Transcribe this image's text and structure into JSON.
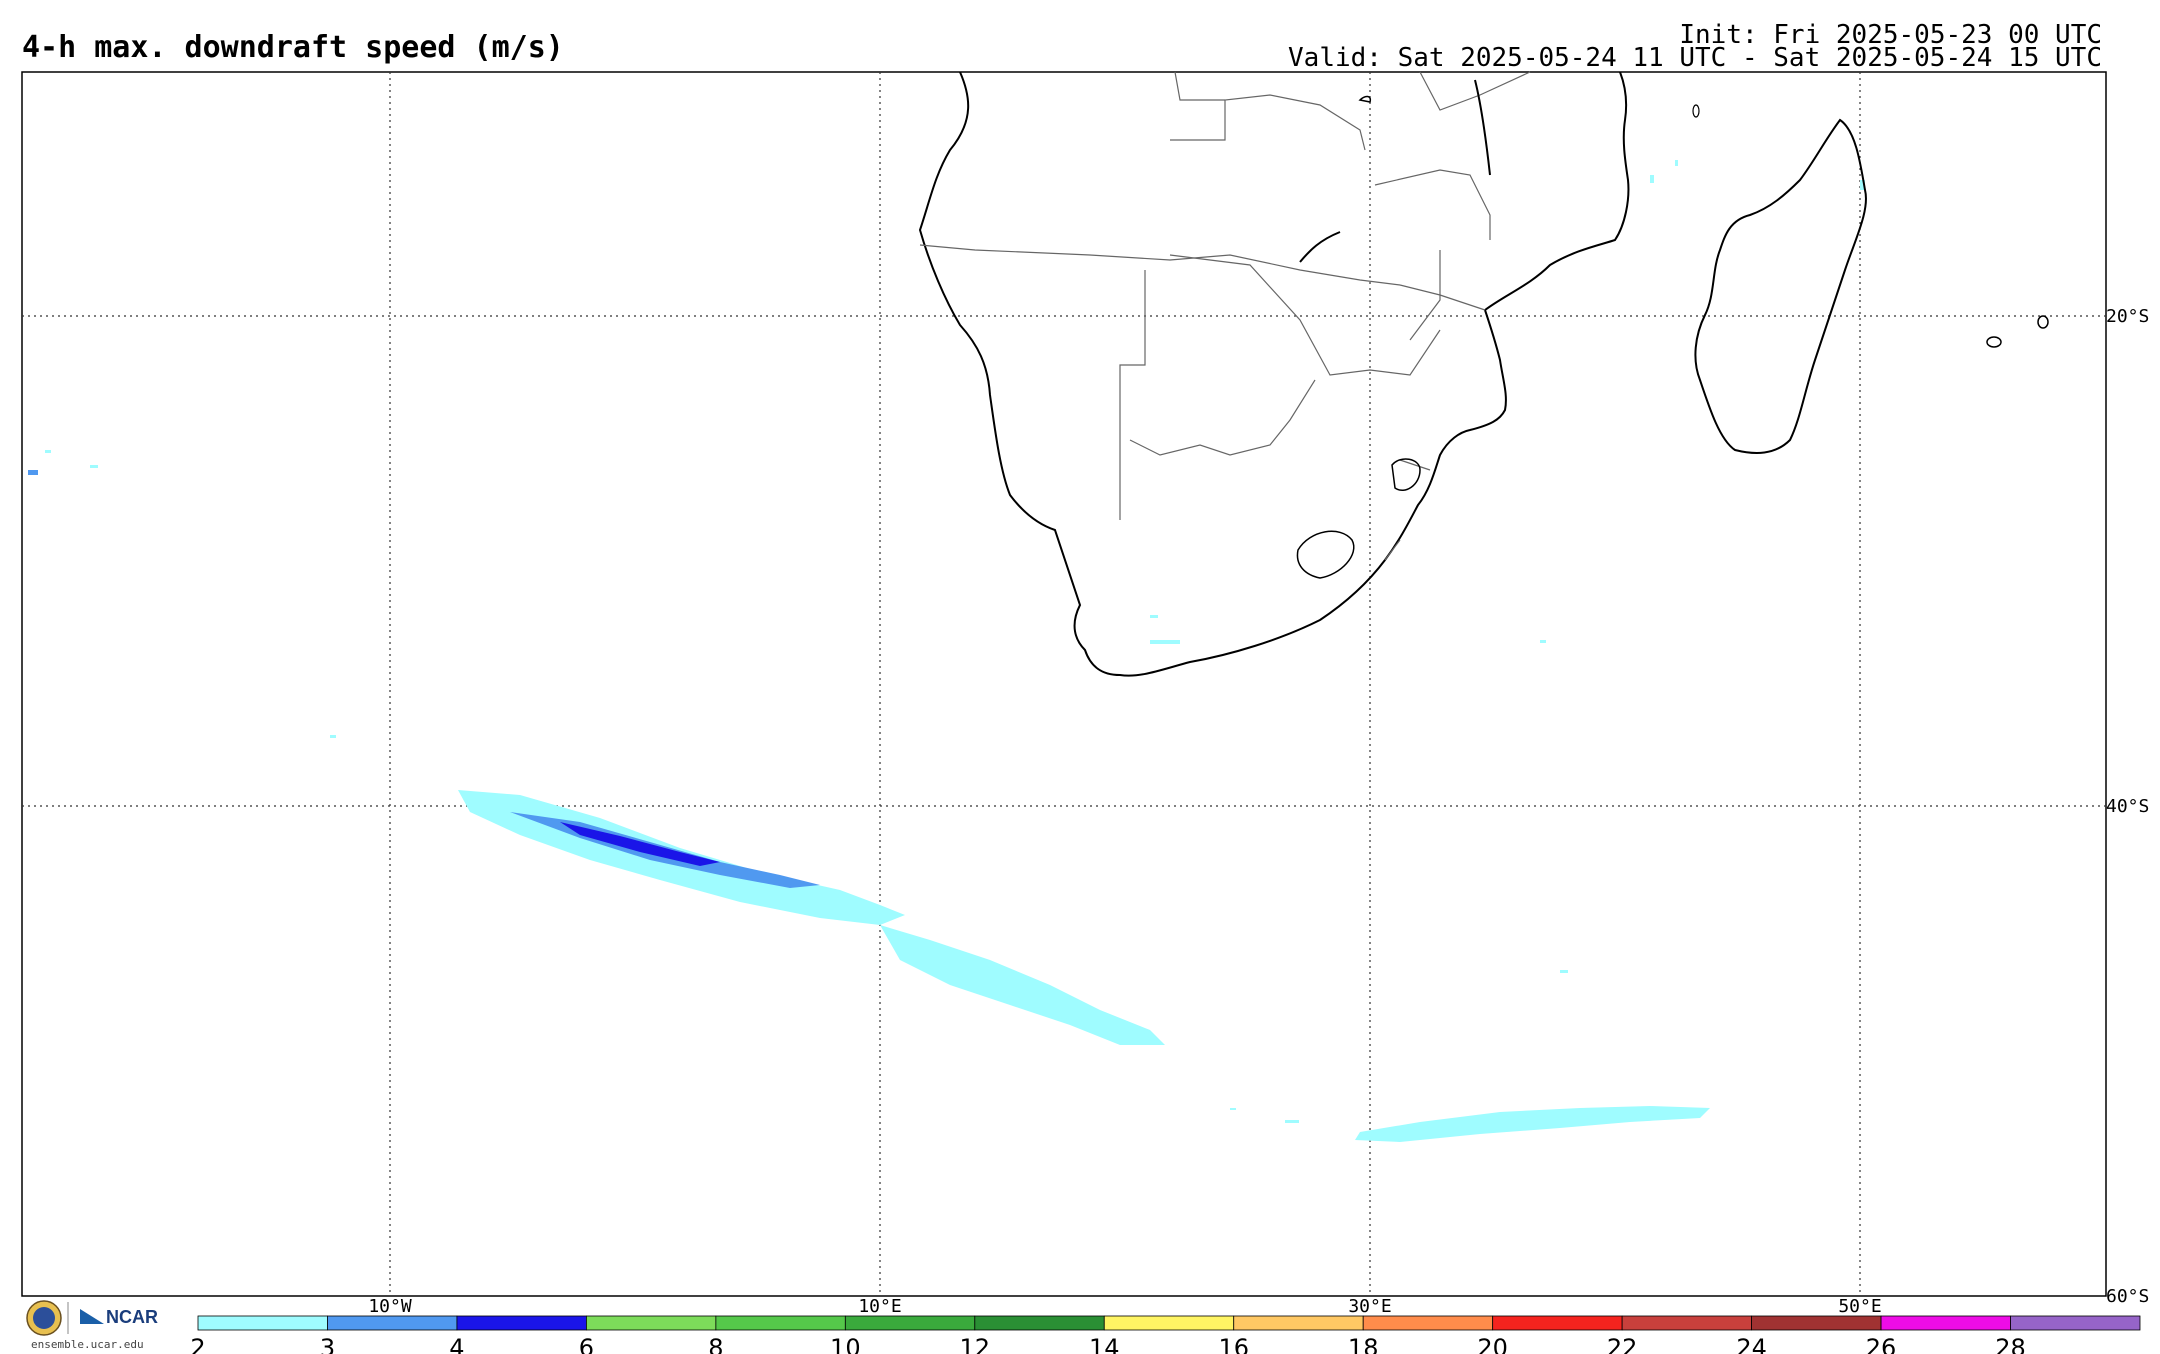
{
  "header": {
    "title": "4-h max. downdraft speed (m/s)",
    "init": "Init: Fri 2025-05-23 00 UTC",
    "valid": "Valid: Sat 2025-05-24 11 UTC - Sat 2025-05-24 15 UTC"
  },
  "map": {
    "lon_labels": [
      "10°W",
      "10°E",
      "30°E",
      "50°E"
    ],
    "lat_labels": [
      "20°S",
      "40°S",
      "60°S"
    ],
    "region": "Southern Africa and South Atlantic / Indian Ocean",
    "features": [
      "southern Africa coastline",
      "Madagascar",
      "country borders",
      "downdraft band near 40°S",
      "downdraft band near 50°S"
    ]
  },
  "colorbar": {
    "ticks": [
      "2",
      "3",
      "4",
      "6",
      "8",
      "10",
      "12",
      "14",
      "16",
      "18",
      "20",
      "22",
      "24",
      "26",
      "28"
    ],
    "colors": [
      "#9ffcff",
      "#5099f0",
      "#1a15e8",
      "#7ddc5a",
      "#55c84a",
      "#3aaa3c",
      "#2a8f34",
      "#fff564",
      "#ffc864",
      "#ff8c4b",
      "#f5231e",
      "#c8403c",
      "#a03232",
      "#ee0ce6",
      "#9664c8"
    ]
  },
  "footer": {
    "org": "NCAR",
    "website": "ensemble.ucar.edu"
  }
}
